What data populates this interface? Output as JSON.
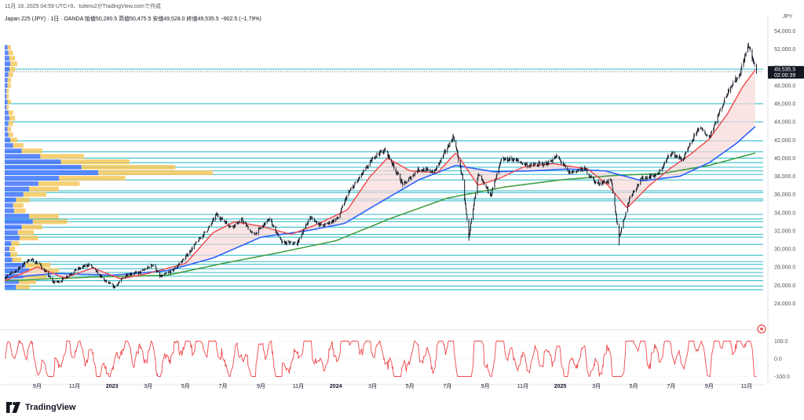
{
  "header": {
    "created_line": "11月 18, 2025 04:59 UTC+9、tuiteru2がTradingView.comで作成"
  },
  "symbol": {
    "line": "Japan 225 (JPY) · 1日 · OANDA 始値50,280.5 高値50,475.5 安値49,528.0 終値49,535.5 −902.5 (−1.79%)"
  },
  "brand": {
    "name": "TradingView"
  },
  "chart_data": [
    {
      "type": "line",
      "subtype": "candlestick",
      "currency_label": "JPY",
      "y_tick_labels": [
        "54,000.0",
        "52,000.0",
        "50,000.0",
        "48,000.0",
        "46,000.0",
        "44,000.0",
        "42,000.0",
        "40,000.0",
        "38,000.0",
        "36,000.0",
        "34,000.0",
        "32,000.0",
        "30,000.0",
        "28,000.0",
        "26,000.0",
        "24,000.0"
      ],
      "y_ticks": [
        54000,
        52000,
        50000,
        48000,
        46000,
        44000,
        42000,
        40000,
        38000,
        36000,
        34000,
        32000,
        30000,
        28000,
        26000,
        24000
      ],
      "ylim": [
        23000,
        55000
      ],
      "x_tick_labels": [
        "9月",
        "11月",
        "2023",
        "3月",
        "5月",
        "7月",
        "9月",
        "11月",
        "2024",
        "3月",
        "5月",
        "7月",
        "9月",
        "11月",
        "2025",
        "3月",
        "5月",
        "7月",
        "9月",
        "11月"
      ],
      "x_tick_dates": [
        "2022-09-01",
        "2022-11-01",
        "2023-01-01",
        "2023-03-01",
        "2023-05-01",
        "2023-07-01",
        "2023-09-01",
        "2023-11-01",
        "2024-01-01",
        "2024-03-01",
        "2024-05-01",
        "2024-07-01",
        "2024-09-01",
        "2024-11-01",
        "2025-01-01",
        "2025-03-01",
        "2025-05-01",
        "2025-07-01",
        "2025-09-01",
        "2025-11-01"
      ],
      "xlim": [
        "2022-07-10",
        "2025-11-28"
      ],
      "last_price_label": "49,535.5",
      "countdown_label": "02:00:39",
      "last_price": 49535.5,
      "horizontal_levels": [
        25500,
        25900,
        26500,
        27000,
        27400,
        27800,
        28300,
        28600,
        29300,
        30500,
        31300,
        31600,
        32400,
        33000,
        33300,
        33800,
        35300,
        35500,
        36200,
        36400,
        37600,
        38200,
        38600,
        39000,
        39500,
        40000,
        40700,
        41900,
        44000,
        46000,
        49800
      ],
      "price_path": [
        [
          "2022-07-10",
          26800
        ],
        [
          "2022-08-01",
          27800
        ],
        [
          "2022-08-20",
          28900
        ],
        [
          "2022-09-05",
          28300
        ],
        [
          "2022-09-28",
          26300
        ],
        [
          "2022-10-10",
          26500
        ],
        [
          "2022-11-01",
          27600
        ],
        [
          "2022-11-25",
          28300
        ],
        [
          "2022-12-20",
          26500
        ],
        [
          "2023-01-05",
          25800
        ],
        [
          "2023-01-25",
          27200
        ],
        [
          "2023-02-15",
          27400
        ],
        [
          "2023-03-10",
          28300
        ],
        [
          "2023-03-20",
          26900
        ],
        [
          "2023-04-10",
          27600
        ],
        [
          "2023-05-01",
          29100
        ],
        [
          "2023-05-20",
          30800
        ],
        [
          "2023-06-10",
          32500
        ],
        [
          "2023-06-20",
          33800
        ],
        [
          "2023-07-15",
          32400
        ],
        [
          "2023-08-01",
          33200
        ],
        [
          "2023-08-20",
          31500
        ],
        [
          "2023-09-15",
          33300
        ],
        [
          "2023-10-05",
          30700
        ],
        [
          "2023-10-30",
          30600
        ],
        [
          "2023-11-20",
          33500
        ],
        [
          "2023-12-10",
          32500
        ],
        [
          "2024-01-05",
          33400
        ],
        [
          "2024-01-20",
          36000
        ],
        [
          "2024-02-20",
          38900
        ],
        [
          "2024-03-05",
          40300
        ],
        [
          "2024-03-22",
          40900
        ],
        [
          "2024-04-20",
          37000
        ],
        [
          "2024-05-15",
          38800
        ],
        [
          "2024-06-10",
          38500
        ],
        [
          "2024-07-11",
          42400
        ],
        [
          "2024-07-25",
          38000
        ],
        [
          "2024-08-05",
          31300
        ],
        [
          "2024-08-20",
          38100
        ],
        [
          "2024-09-10",
          36000
        ],
        [
          "2024-09-27",
          39800
        ],
        [
          "2024-10-15",
          39900
        ],
        [
          "2024-11-10",
          39200
        ],
        [
          "2024-12-10",
          39400
        ],
        [
          "2024-12-27",
          40200
        ],
        [
          "2025-01-15",
          38400
        ],
        [
          "2025-02-10",
          38800
        ],
        [
          "2025-03-01",
          37200
        ],
        [
          "2025-03-25",
          37500
        ],
        [
          "2025-04-07",
          31300
        ],
        [
          "2025-04-25",
          35800
        ],
        [
          "2025-05-15",
          37800
        ],
        [
          "2025-06-10",
          38200
        ],
        [
          "2025-06-30",
          40600
        ],
        [
          "2025-07-20",
          39800
        ],
        [
          "2025-08-15",
          43400
        ],
        [
          "2025-09-01",
          42300
        ],
        [
          "2025-09-20",
          45400
        ],
        [
          "2025-10-05",
          47900
        ],
        [
          "2025-10-20",
          49100
        ],
        [
          "2025-11-04",
          52500
        ],
        [
          "2025-11-10",
          51000
        ],
        [
          "2025-11-17",
          49535
        ]
      ],
      "fast_ma_path": [
        [
          "2022-07-10",
          26500
        ],
        [
          "2022-09-01",
          28000
        ],
        [
          "2022-10-15",
          26800
        ],
        [
          "2022-12-01",
          27900
        ],
        [
          "2023-01-15",
          26700
        ],
        [
          "2023-03-01",
          27300
        ],
        [
          "2023-05-01",
          28400
        ],
        [
          "2023-06-15",
          31800
        ],
        [
          "2023-07-20",
          33000
        ],
        [
          "2023-09-01",
          32500
        ],
        [
          "2023-10-20",
          31600
        ],
        [
          "2023-12-01",
          32700
        ],
        [
          "2024-01-20",
          34300
        ],
        [
          "2024-02-25",
          37900
        ],
        [
          "2024-03-25",
          40000
        ],
        [
          "2024-05-01",
          38600
        ],
        [
          "2024-06-15",
          38400
        ],
        [
          "2024-07-15",
          40600
        ],
        [
          "2024-08-20",
          37000
        ],
        [
          "2024-09-25",
          37800
        ],
        [
          "2024-11-01",
          39000
        ],
        [
          "2024-12-20",
          39400
        ],
        [
          "2025-02-15",
          38800
        ],
        [
          "2025-03-20",
          37000
        ],
        [
          "2025-04-20",
          34500
        ],
        [
          "2025-05-25",
          36900
        ],
        [
          "2025-06-30",
          38900
        ],
        [
          "2025-08-01",
          40400
        ],
        [
          "2025-09-01",
          42100
        ],
        [
          "2025-10-01",
          44900
        ],
        [
          "2025-10-25",
          47800
        ],
        [
          "2025-11-17",
          49900
        ]
      ],
      "mid_ma_path": [
        [
          "2022-07-10",
          26800
        ],
        [
          "2022-10-01",
          27300
        ],
        [
          "2023-01-01",
          27100
        ],
        [
          "2023-04-01",
          27600
        ],
        [
          "2023-06-15",
          29000
        ],
        [
          "2023-09-01",
          31300
        ],
        [
          "2023-11-15",
          32000
        ],
        [
          "2024-01-15",
          32800
        ],
        [
          "2024-03-15",
          35200
        ],
        [
          "2024-05-15",
          37600
        ],
        [
          "2024-07-15",
          39200
        ],
        [
          "2024-09-15",
          38500
        ],
        [
          "2024-11-15",
          38600
        ],
        [
          "2025-01-15",
          38800
        ],
        [
          "2025-03-15",
          38600
        ],
        [
          "2025-05-15",
          37500
        ],
        [
          "2025-07-15",
          38000
        ],
        [
          "2025-09-01",
          39500
        ],
        [
          "2025-10-15",
          41600
        ],
        [
          "2025-11-17",
          43600
        ]
      ],
      "slow_ma_path": [
        [
          "2022-07-10",
          26500
        ],
        [
          "2022-12-01",
          26900
        ],
        [
          "2023-04-01",
          27100
        ],
        [
          "2023-07-01",
          28400
        ],
        [
          "2023-10-01",
          29600
        ],
        [
          "2024-01-01",
          30900
        ],
        [
          "2024-04-01",
          33400
        ],
        [
          "2024-07-01",
          35600
        ],
        [
          "2024-10-01",
          36800
        ],
        [
          "2025-01-01",
          37600
        ],
        [
          "2025-04-01",
          38100
        ],
        [
          "2025-06-15",
          38300
        ],
        [
          "2025-09-01",
          39200
        ],
        [
          "2025-11-17",
          40600
        ]
      ],
      "volume_profile": [
        {
          "price": 25800,
          "width": 0.12
        },
        {
          "price": 26400,
          "width": 0.15
        },
        {
          "price": 27000,
          "width": 0.2
        },
        {
          "price": 27600,
          "width": 0.26
        },
        {
          "price": 28200,
          "width": 0.22
        },
        {
          "price": 28800,
          "width": 0.08
        },
        {
          "price": 29400,
          "width": 0.06
        },
        {
          "price": 30000,
          "width": 0.05
        },
        {
          "price": 30600,
          "width": 0.07
        },
        {
          "price": 31200,
          "width": 0.16
        },
        {
          "price": 31800,
          "width": 0.14
        },
        {
          "price": 32400,
          "width": 0.18
        },
        {
          "price": 33000,
          "width": 0.3
        },
        {
          "price": 33600,
          "width": 0.26
        },
        {
          "price": 34200,
          "width": 0.1
        },
        {
          "price": 34800,
          "width": 0.09
        },
        {
          "price": 35400,
          "width": 0.12
        },
        {
          "price": 36000,
          "width": 0.2
        },
        {
          "price": 36600,
          "width": 0.26
        },
        {
          "price": 37200,
          "width": 0.36
        },
        {
          "price": 37800,
          "width": 0.58
        },
        {
          "price": 38400,
          "width": 1.0
        },
        {
          "price": 39000,
          "width": 0.82
        },
        {
          "price": 39600,
          "width": 0.6
        },
        {
          "price": 40200,
          "width": 0.38
        },
        {
          "price": 40800,
          "width": 0.18
        },
        {
          "price": 41400,
          "width": 0.09
        },
        {
          "price": 42000,
          "width": 0.06
        },
        {
          "price": 42600,
          "width": 0.04
        },
        {
          "price": 43200,
          "width": 0.03
        },
        {
          "price": 43800,
          "width": 0.04
        },
        {
          "price": 44400,
          "width": 0.05
        },
        {
          "price": 45000,
          "width": 0.04
        },
        {
          "price": 45600,
          "width": 0.02
        },
        {
          "price": 46200,
          "width": 0.03
        },
        {
          "price": 46800,
          "width": 0.02
        },
        {
          "price": 47400,
          "width": 0.02
        },
        {
          "price": 48000,
          "width": 0.03
        },
        {
          "price": 48600,
          "width": 0.03
        },
        {
          "price": 49200,
          "width": 0.04
        },
        {
          "price": 49800,
          "width": 0.05
        },
        {
          "price": 50400,
          "width": 0.06
        },
        {
          "price": 51000,
          "width": 0.05
        },
        {
          "price": 51600,
          "width": 0.04
        },
        {
          "price": 52200,
          "width": 0.03
        }
      ],
      "colors": {
        "candles": "#131722",
        "fast_ma": "#f0474a",
        "mid_ma": "#2962ff",
        "slow_ma": "#43a047",
        "levels": "#1fb5c4",
        "fill": "#f9d9d9",
        "profile_up": "#2962ff",
        "profile_down": "#f5c453"
      }
    },
    {
      "type": "line",
      "subtype": "oscillator",
      "y_tick_labels": [
        "100.0",
        "0.0",
        "-100.0"
      ],
      "y_ticks": [
        100,
        0,
        -100
      ],
      "ylim": [
        -120,
        120
      ],
      "color": "#f0474a"
    }
  ]
}
